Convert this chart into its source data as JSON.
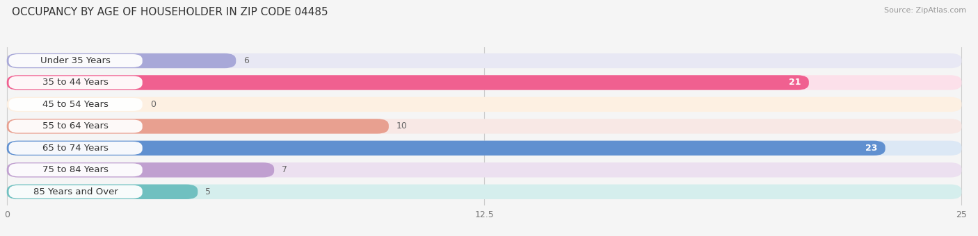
{
  "title": "OCCUPANCY BY AGE OF HOUSEHOLDER IN ZIP CODE 04485",
  "source": "Source: ZipAtlas.com",
  "categories": [
    "Under 35 Years",
    "35 to 44 Years",
    "45 to 54 Years",
    "55 to 64 Years",
    "65 to 74 Years",
    "75 to 84 Years",
    "85 Years and Over"
  ],
  "values": [
    6,
    21,
    0,
    10,
    23,
    7,
    5
  ],
  "bar_colors": [
    "#a8a8d8",
    "#f06090",
    "#f5c89a",
    "#e8a090",
    "#6090d0",
    "#c0a0d0",
    "#70c0c0"
  ],
  "bar_bg_colors": [
    "#e8e8f4",
    "#fce0ea",
    "#fdf0e2",
    "#f8e8e5",
    "#dce8f5",
    "#ece0f0",
    "#d5eeed"
  ],
  "xlim": [
    0,
    25
  ],
  "xticks": [
    0,
    12.5,
    25
  ],
  "background_color": "#f5f5f5",
  "title_fontsize": 11,
  "label_fontsize": 9.5,
  "value_fontsize": 9
}
